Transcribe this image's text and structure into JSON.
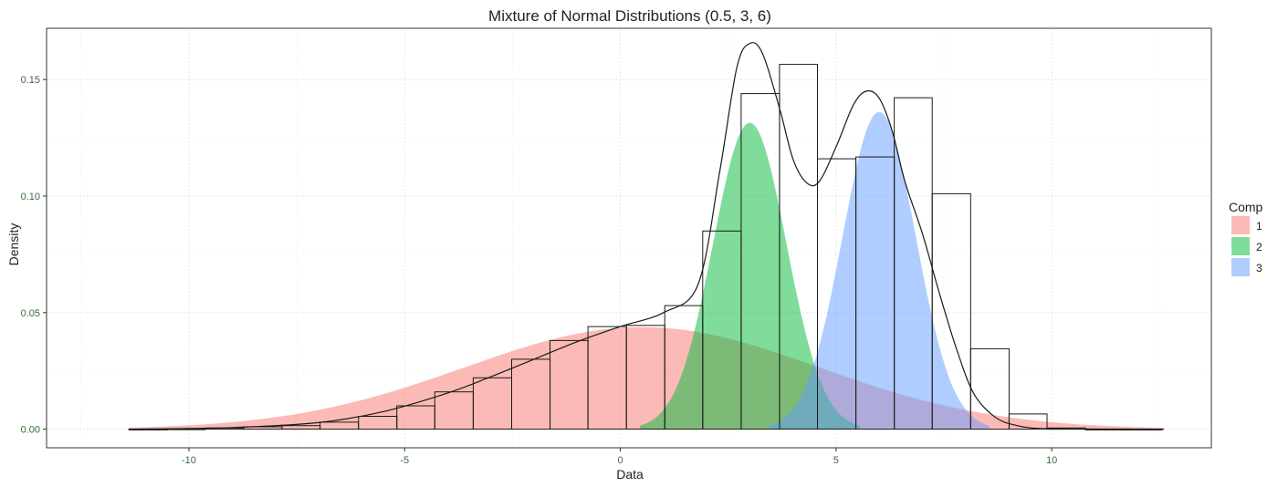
{
  "chart_data": {
    "type": "area",
    "title": "Mixture of Normal Distributions (0.5, 3, 6)",
    "xlabel": "Data",
    "ylabel": "Density",
    "xlim": [
      -13.3,
      13.7
    ],
    "ylim": [
      -0.008,
      0.172
    ],
    "x_ticks": [
      -10,
      -5,
      0,
      5,
      10
    ],
    "x_tick_labels": [
      "-10",
      "-5",
      "0",
      "5",
      "10"
    ],
    "y_ticks": [
      0,
      0.05,
      0.1,
      0.15
    ],
    "y_tick_labels": [
      "0.00",
      "0.05",
      "0.10",
      "0.15"
    ],
    "grid": true,
    "legend": {
      "title": "Comp",
      "placement": "right",
      "entries": [
        {
          "label": "1",
          "color": "#F8766D"
        },
        {
          "label": "2",
          "color": "#00BA38"
        },
        {
          "label": "3",
          "color": "#619CFF"
        }
      ]
    },
    "components": [
      {
        "label": "1",
        "weight": 0.45,
        "mean": 0.5,
        "sd": 4.1,
        "color": "#F8766D",
        "fill_opacity": 0.5
      },
      {
        "label": "2",
        "weight": 0.28,
        "mean": 3.0,
        "sd": 0.85,
        "color": "#00BA38",
        "fill_opacity": 0.5
      },
      {
        "label": "3",
        "weight": 0.29,
        "mean": 6.0,
        "sd": 0.85,
        "color": "#619CFF",
        "fill_opacity": 0.5
      }
    ],
    "histogram": {
      "bin_width": 0.887,
      "bins": [
        {
          "x0": -11.39,
          "x1": -10.5,
          "density": 0.0
        },
        {
          "x0": -10.5,
          "x1": -9.62,
          "density": 0.0001
        },
        {
          "x0": -9.62,
          "x1": -8.73,
          "density": 0.0005
        },
        {
          "x0": -8.73,
          "x1": -7.84,
          "density": 0.001
        },
        {
          "x0": -7.84,
          "x1": -6.96,
          "density": 0.0015
        },
        {
          "x0": -6.96,
          "x1": -6.07,
          "density": 0.003
        },
        {
          "x0": -6.07,
          "x1": -5.18,
          "density": 0.0055
        },
        {
          "x0": -5.18,
          "x1": -4.3,
          "density": 0.01
        },
        {
          "x0": -4.3,
          "x1": -3.41,
          "density": 0.016
        },
        {
          "x0": -3.41,
          "x1": -2.52,
          "density": 0.022
        },
        {
          "x0": -2.52,
          "x1": -1.63,
          "density": 0.03
        },
        {
          "x0": -1.63,
          "x1": -0.75,
          "density": 0.038
        },
        {
          "x0": -0.75,
          "x1": 0.14,
          "density": 0.044
        },
        {
          "x0": 0.14,
          "x1": 1.03,
          "density": 0.0445
        },
        {
          "x0": 1.03,
          "x1": 1.91,
          "density": 0.053
        },
        {
          "x0": 1.91,
          "x1": 2.8,
          "density": 0.085
        },
        {
          "x0": 2.8,
          "x1": 3.69,
          "density": 0.144
        },
        {
          "x0": 3.69,
          "x1": 4.57,
          "density": 0.1565
        },
        {
          "x0": 4.57,
          "x1": 5.46,
          "density": 0.116
        },
        {
          "x0": 5.46,
          "x1": 6.35,
          "density": 0.1168
        },
        {
          "x0": 6.35,
          "x1": 7.23,
          "density": 0.1422
        },
        {
          "x0": 7.23,
          "x1": 8.12,
          "density": 0.101
        },
        {
          "x0": 8.12,
          "x1": 9.01,
          "density": 0.0345
        },
        {
          "x0": 9.01,
          "x1": 9.89,
          "density": 0.0065
        },
        {
          "x0": 9.89,
          "x1": 10.78,
          "density": 0.0005
        },
        {
          "x0": 10.78,
          "x1": 11.67,
          "density": 0.0
        },
        {
          "x0": 11.67,
          "x1": 12.55,
          "density": 0.0
        }
      ]
    },
    "kde_curve": {
      "x": [
        -11.4,
        -9,
        -7,
        -5.5,
        -4,
        -3,
        -2,
        -1,
        0,
        1,
        1.8,
        2.3,
        2.7,
        3.0,
        3.3,
        3.7,
        4.0,
        4.3,
        4.6,
        5.0,
        5.4,
        5.7,
        6.0,
        6.3,
        6.6,
        7.0,
        7.4,
        7.8,
        8.2,
        8.7,
        9.2,
        9.7,
        10.5,
        12.6
      ],
      "y": [
        0,
        0.0007,
        0.0028,
        0.0075,
        0.0155,
        0.0225,
        0.03,
        0.0375,
        0.044,
        0.05,
        0.062,
        0.11,
        0.155,
        0.1655,
        0.161,
        0.137,
        0.116,
        0.106,
        0.106,
        0.121,
        0.139,
        0.145,
        0.142,
        0.128,
        0.106,
        0.084,
        0.058,
        0.034,
        0.015,
        0.005,
        0.0015,
        0.0003,
        0.0001,
        0
      ]
    }
  }
}
